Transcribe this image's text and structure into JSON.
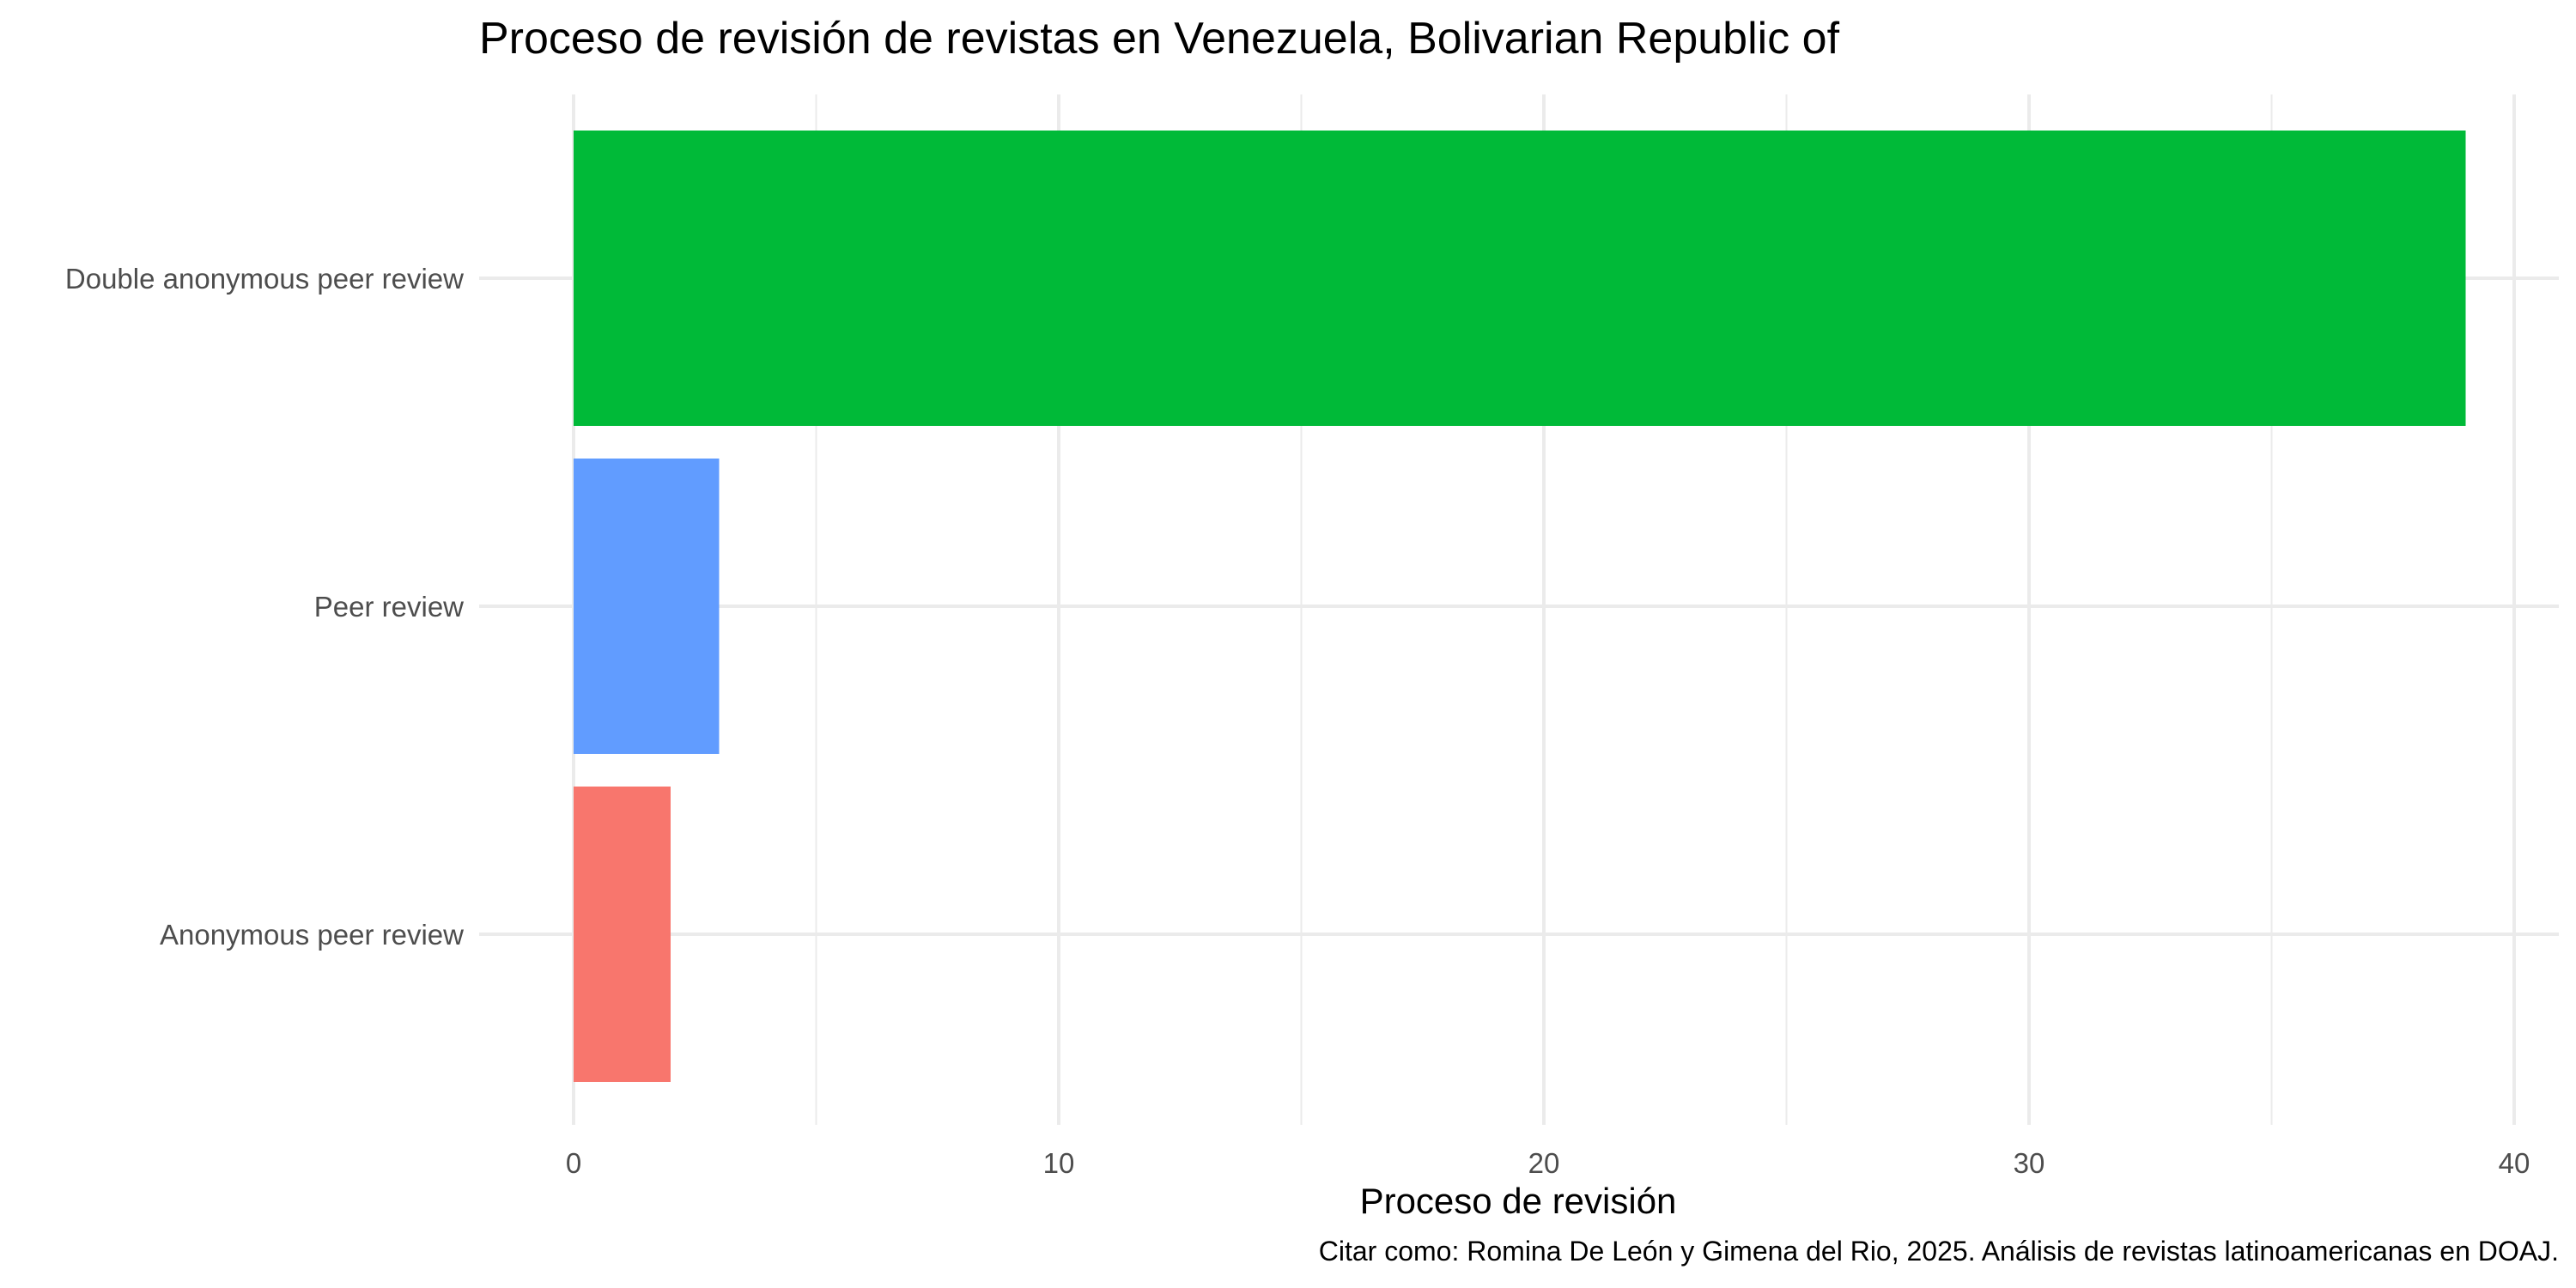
{
  "chart_data": {
    "type": "bar",
    "orientation": "horizontal",
    "title": "Proceso de revisión de revistas en Venezuela, Bolivarian Republic of",
    "xlabel": "Proceso de revisión",
    "ylabel": "",
    "caption": "Citar como: Romina De León y Gimena del Rio, 2025. Análisis de revistas latinoamericanas en DOAJ.",
    "categories": [
      "Anonymous peer review",
      "Peer review",
      "Double anonymous peer review"
    ],
    "values": [
      2,
      3,
      39
    ],
    "colors": [
      "#F8766D",
      "#619CFF",
      "#00BA38"
    ],
    "xlim": [
      0,
      41
    ],
    "x_ticks": [
      0,
      10,
      20,
      30,
      40
    ],
    "x_tick_labels": [
      "0",
      "10",
      "20",
      "30",
      "40"
    ],
    "grid": true,
    "legend": "none"
  }
}
